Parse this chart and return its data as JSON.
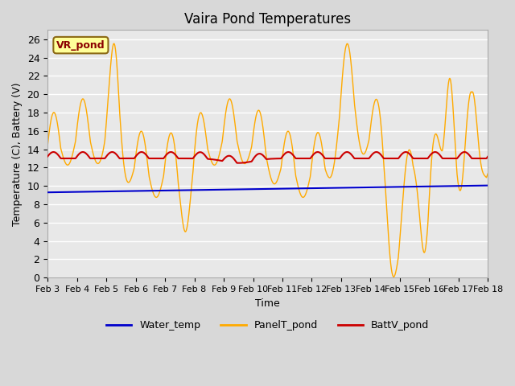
{
  "title": "Vaira Pond Temperatures",
  "xlabel": "Time",
  "ylabel": "Temperature (C), Battery (V)",
  "site_label": "VR_pond",
  "ylim": [
    0,
    27
  ],
  "yticks": [
    0,
    2,
    4,
    6,
    8,
    10,
    12,
    14,
    16,
    18,
    20,
    22,
    24,
    26
  ],
  "xlim_start": 0,
  "xlim_end": 15,
  "xtick_labels": [
    "Feb 3",
    "Feb 4",
    "Feb 5",
    "Feb 6",
    "Feb 7",
    "Feb 8",
    "Feb 9",
    "Feb 10",
    "Feb 11",
    "Feb 12",
    "Feb 13",
    "Feb 14",
    "Feb 15",
    "Feb 16",
    "Feb 17",
    "Feb 18"
  ],
  "water_temp_color": "#0000cc",
  "panel_temp_color": "#ffaa00",
  "batt_color": "#cc0000",
  "legend_entries": [
    "Water_temp",
    "PanelT_pond",
    "BattV_pond"
  ]
}
